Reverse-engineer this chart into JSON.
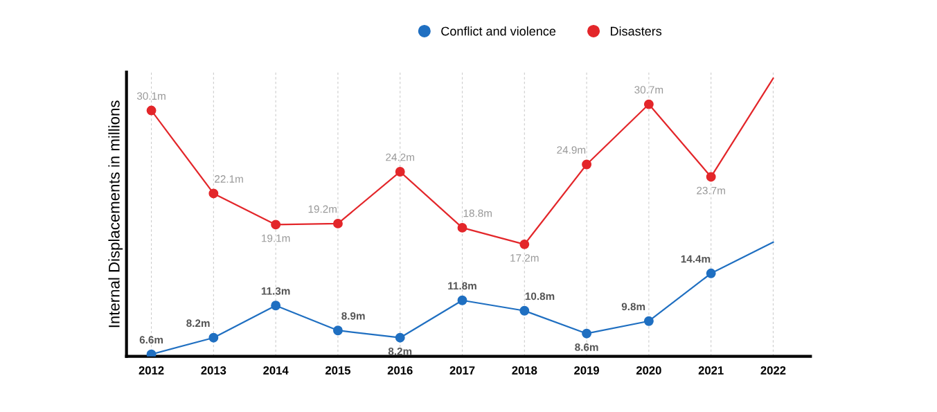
{
  "chart_data": {
    "type": "line",
    "ylabel": "Internal Displacements in millions",
    "categories": [
      "2012",
      "2013",
      "2014",
      "2015",
      "2016",
      "2017",
      "2018",
      "2019",
      "2020",
      "2021",
      "2022"
    ],
    "series": [
      {
        "name": "Conflict and violence",
        "color": "#1f6fc1",
        "values": [
          6.6,
          8.2,
          11.3,
          8.9,
          8.2,
          11.8,
          10.8,
          8.6,
          9.8,
          14.4,
          17.4
        ],
        "value_labels": [
          "6.6m",
          "8.2m",
          "11.3m",
          "8.9m",
          "8.2m",
          "11.8m",
          "10.8m",
          "8.6m",
          "9.8m",
          "14.4m",
          null
        ]
      },
      {
        "name": "Disasters",
        "color": "#e3262a",
        "values": [
          30.1,
          22.1,
          19.1,
          19.2,
          24.2,
          18.8,
          17.2,
          24.9,
          30.7,
          23.7,
          33.2
        ],
        "value_labels": [
          "30.1m",
          "22.1m",
          "19.1m",
          "19.2m",
          "24.2m",
          "18.8m",
          "17.2m",
          "24.9m",
          "30.7m",
          "23.7m",
          null
        ]
      }
    ],
    "ylim": [
      6.4,
      33.8
    ],
    "tick_labels": "x",
    "grid": "x",
    "legend": "top",
    "marker": "circle",
    "line_style": "solid"
  }
}
